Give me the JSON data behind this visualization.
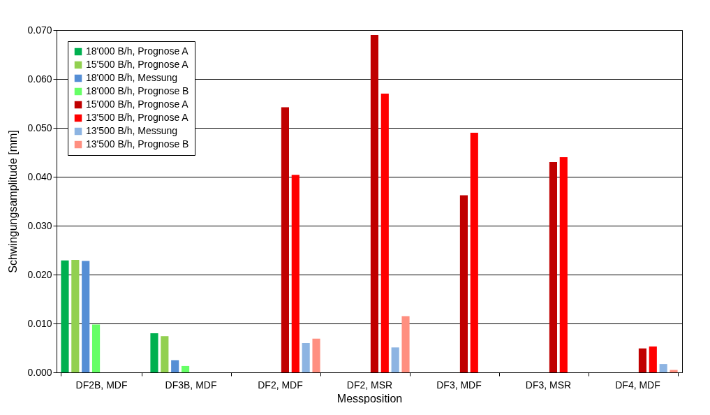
{
  "chart_data": {
    "type": "bar",
    "xlabel": "Messposition",
    "ylabel": "Schwingungsamplitude [mm]",
    "categories": [
      "DF2B, MDF",
      "DF3B, MDF",
      "DF2, MDF",
      "DF2, MSR",
      "DF3, MDF",
      "DF3, MSR",
      "DF4, MDF"
    ],
    "series": [
      {
        "name": "18'000 B/h, Prognose A",
        "color": "#00b050",
        "values": [
          0.0229,
          0.008,
          null,
          null,
          null,
          null,
          null
        ]
      },
      {
        "name": "15'500 B/h, Prognose A",
        "color": "#92d050",
        "values": [
          0.023,
          0.0074,
          null,
          null,
          null,
          null,
          null
        ]
      },
      {
        "name": "18'000 B/h, Messung",
        "color": "#558ed5",
        "values": [
          0.0228,
          0.0025,
          null,
          null,
          null,
          null,
          null
        ]
      },
      {
        "name": "18'000 B/h, Prognose B",
        "color": "#66ff66",
        "values": [
          0.0098,
          0.0013,
          null,
          null,
          null,
          null,
          null
        ]
      },
      {
        "name": "15'000 B/h, Prognose A",
        "color": "#c00000",
        "values": [
          null,
          null,
          0.0542,
          0.069,
          0.0362,
          0.043,
          0.0049
        ]
      },
      {
        "name": "13'500 B/h, Prognose A",
        "color": "#ff0000",
        "values": [
          null,
          null,
          0.0404,
          0.057,
          0.049,
          0.044,
          0.0053
        ]
      },
      {
        "name": "13'500 B/h, Messung",
        "color": "#8db4e2",
        "values": [
          null,
          null,
          0.006,
          0.0051,
          null,
          null,
          0.0017
        ]
      },
      {
        "name": "13'500 B/h, Prognose B",
        "color": "#ff8f80",
        "values": [
          null,
          null,
          0.0069,
          0.0115,
          null,
          null,
          0.0005
        ]
      }
    ],
    "ylim": [
      0,
      0.07
    ],
    "yticks": [
      {
        "value": 0,
        "label": "0.000"
      },
      {
        "value": 0.01,
        "label": "0.010"
      },
      {
        "value": 0.02,
        "label": "0.020"
      },
      {
        "value": 0.03,
        "label": "0.030"
      },
      {
        "value": 0.04,
        "label": "0.040"
      },
      {
        "value": 0.05,
        "label": "0.050"
      },
      {
        "value": 0.06,
        "label": "0.060"
      },
      {
        "value": 0.07,
        "label": "0.070"
      }
    ],
    "grid": "y",
    "legend": "top left"
  }
}
